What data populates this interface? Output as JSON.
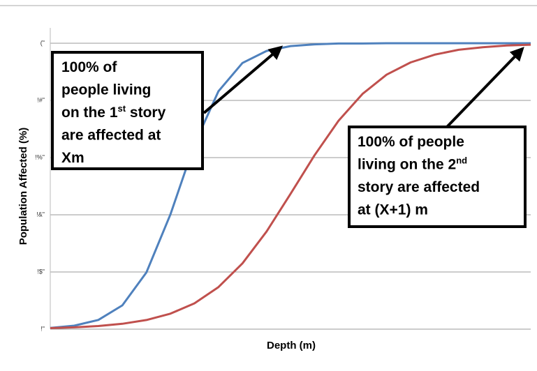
{
  "chart_data": {
    "type": "line",
    "x_label": "Depth (m)",
    "y_label": "Population Affected (%)",
    "x": [
      0,
      0.5,
      1,
      1.5,
      2,
      2.5,
      3,
      3.5,
      4,
      4.5,
      5,
      5.5,
      6,
      6.5,
      7,
      7.5,
      8,
      8.5,
      9,
      9.5,
      10
    ],
    "xlim": [
      0,
      10
    ],
    "ylim": [
      0,
      100
    ],
    "yticks": [
      {
        "value": 0,
        "label": "!\""
      },
      {
        "value": 20,
        "label": "!$\""
      },
      {
        "value": 40,
        "label": "!&\""
      },
      {
        "value": 60,
        "label": "!%\""
      },
      {
        "value": 80,
        "label": "!#\""
      },
      {
        "value": 100,
        "label": "(\""
      }
    ],
    "grid": true,
    "series": [
      {
        "name": "1st story",
        "color": "#4f81bd",
        "values": [
          0.45,
          1.21,
          3.23,
          8.32,
          19.8,
          40.1,
          64.6,
          83.2,
          93.1,
          97.3,
          99.0,
          99.6,
          99.9,
          99.9,
          100,
          100,
          100,
          100,
          100,
          100,
          100
        ]
      },
      {
        "name": "2nd story",
        "color": "#c0504d",
        "values": [
          0.36,
          0.63,
          1.09,
          1.87,
          3.2,
          5.41,
          9.03,
          14.7,
          23.0,
          34.1,
          47.3,
          60.8,
          72.9,
          82.3,
          89.0,
          93.3,
          96.0,
          97.7,
          98.6,
          99.2,
          99.5
        ]
      }
    ],
    "annotations": [
      {
        "lines": [
          [
            {
              "text": "100% of"
            }
          ],
          [
            {
              "text": "people living"
            }
          ],
          [
            {
              "text": "on the 1"
            },
            {
              "text": "st",
              "sup": true
            },
            {
              "text": " story"
            }
          ],
          [
            {
              "text": "are affected at"
            }
          ],
          [
            {
              "text": "Xm"
            }
          ]
        ]
      },
      {
        "lines": [
          [
            {
              "text": "100% of people"
            }
          ],
          [
            {
              "text": "living on the 2"
            },
            {
              "text": "nd",
              "sup": true
            }
          ],
          [
            {
              "text": "story are affected"
            }
          ],
          [
            {
              "text": "at (X+1) m"
            }
          ]
        ]
      }
    ]
  }
}
